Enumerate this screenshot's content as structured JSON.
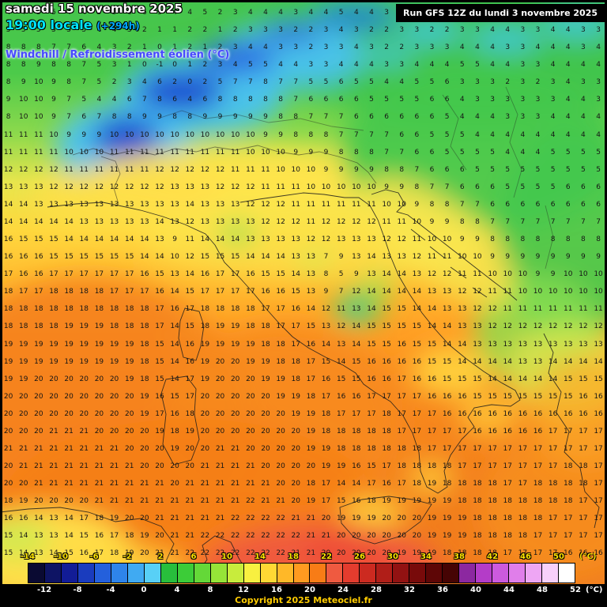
{
  "header": {
    "date": "samedi 15 novembre 2025",
    "time": "19:00 locale",
    "offset": "(+294h)",
    "variable": "Windchill / Refroidissement éolien (°C)"
  },
  "run_info": {
    "text": "Run GFS 12Z du lundi 3 novembre 2025"
  },
  "footer": {
    "copyright": "Copyright 2025 Meteociel.fr"
  },
  "scale": {
    "unit": "(°C)",
    "top_labels": [
      "-14",
      "-10",
      "-6",
      "-2",
      "2",
      "6",
      "10",
      "14",
      "18",
      "22",
      "26",
      "30",
      "34",
      "38",
      "42",
      "46",
      "50"
    ],
    "bottom_labels": [
      "-12",
      "-8",
      "-4",
      "0",
      "4",
      "8",
      "12",
      "16",
      "20",
      "24",
      "28",
      "32",
      "36",
      "40",
      "44",
      "48",
      "52"
    ],
    "colors": [
      "#0a0a32",
      "#0e1464",
      "#121c96",
      "#1a3cbe",
      "#2460dc",
      "#2e84ea",
      "#40aaf2",
      "#58d0f6",
      "#28be3c",
      "#3ccc38",
      "#64d838",
      "#96e438",
      "#c8ec3c",
      "#f8f040",
      "#ffd834",
      "#ffb828",
      "#ff9a20",
      "#f87c16",
      "#ef5a40",
      "#e43c2e",
      "#cc2a20",
      "#b01e18",
      "#921212",
      "#780a0a",
      "#5e0606",
      "#460404",
      "#8c28a0",
      "#b43cc8",
      "#cc5ade",
      "#e07eea",
      "#eea6f4",
      "#f8d0fa",
      "#ffffff"
    ]
  },
  "map": {
    "grid_rows": [
      "4 4 5 5 4 4 5 5 6 6 5 4 4 5 2 3 4 4 4 3 4 4 5 4 4 3 2 3 3 2 3 4 4 3 3 4 4 3 3 4",
      "5 5 5 5 5 5 4 4 3 2 1 1 2 2 1 2 3 3 3 2 2 3 4 3 2 2 3 3 2 2 3 3 4 4 3 3 4 4 3 3",
      "8 8 8 7 7 6 4 3 2 1 0 1 2 1 2 3 4 4 3 3 2 3 3 4 3 2 2 3 3 3 4 4 4 3 3 4 4 4 3 4",
      "8 8 9 8 8 7 5 3 1 0 -1 0 1 2 3 4 5 5 4 4 3 3 4 4 4 3 3 4 4 4 5 5 4 4 3 3 4 4 4 4",
      "8 9 10 9 8 7 5 2 3 4 6 2 0 2 5 7 7 8 7 7 5 5 6 5 5 4 4 5 5 6 3 3 3 2 3 2 3 4 3 3",
      "9 10 10 9 7 5 4 4 6 7 8 6 4 6 8 8 8 8 8 7 6 6 6 6 5 5 5 5 6 6 4 3 3 3 3 3 3 4 4 3",
      "8 10 10 9 7 6 7 8 8 9 9 8 8 9 9 9 9 9 8 8 7 7 7 6 6 6 6 6 6 5 4 4 4 3 3 3 4 4 4 4",
      "11 11 11 10 9 9 9 10 10 10 10 10 10 10 10 10 10 9 9 8 8 8 7 7 7 7 6 6 5 5 5 4 4 4 4 4 4 4 4 4",
      "11 11 11 11 10 10 10 11 11 11 11 11 11 11 11 11 10 10 10 9 9 9 8 8 8 7 7 6 6 5 5 5 5 4 4 4 5 5 5 5",
      "12 12 12 12 11 11 11 11 11 11 12 12 12 12 12 11 11 11 10 10 10 9 9 9 9 8 8 7 6 6 6 5 5 5 5 5 5 5 5 5",
      "13 13 13 12 12 12 12 12 12 12 12 13 13 13 12 12 12 11 11 11 10 10 10 10 10 9 9 8 7 7 6 6 6 5 5 5 5 6 6 6",
      "14 14 13 13 13 13 13 13 13 13 13 13 14 13 13 13 12 12 12 11 11 11 11 11 11 10 10 9 8 8 7 7 6 6 6 6 6 6 6 6",
      "14 14 14 14 14 13 13 13 13 13 14 13 12 13 13 13 13 12 12 12 11 12 12 12 12 11 11 10 9 9 8 8 7 7 7 7 7 7 7 7",
      "16 15 15 15 14 14 14 14 14 14 13 9 11 14 14 14 13 13 13 13 12 12 13 13 13 12 12 11 10 10 9 9 8 8 8 8 8 8 8 8",
      "16 16 16 15 15 15 15 15 15 14 14 10 12 15 15 15 14 14 14 13 13 7 9 13 14 13 13 12 11 11 10 10 9 9 9 9 9 9 9 9",
      "17 16 16 17 17 17 17 17 17 16 15 13 14 16 17 17 16 15 15 14 13 8 5 9 13 14 14 13 12 12 11 11 10 10 10 9 9 10 10 10",
      "18 17 17 18 18 18 18 17 17 17 16 14 15 17 17 17 17 16 16 15 13 9 7 12 14 14 14 14 13 13 12 12 11 11 10 10 10 10 10 10",
      "18 18 18 18 18 18 18 18 18 18 17 16 17 18 18 18 18 17 17 16 14 12 11 13 14 15 15 14 14 13 13 12 12 11 11 11 11 11 11 11",
      "18 18 18 18 19 19 19 18 18 18 17 14 15 18 19 19 18 18 17 17 15 13 12 14 15 15 15 15 14 14 13 13 12 12 12 12 12 12 12 12",
      "19 19 19 19 19 19 19 19 19 18 15 14 16 19 19 19 19 18 18 17 16 14 13 14 15 15 16 15 15 14 14 13 13 13 13 13 13 13 13 13",
      "19 19 19 19 19 19 19 19 19 18 15 14 16 19 20 20 19 19 18 18 17 15 14 15 16 16 16 16 15 15 14 14 14 14 13 13 14 14 14 14",
      "19 19 20 20 20 20 20 20 19 18 15 14 17 19 20 20 20 19 19 18 17 16 15 15 16 16 17 16 16 15 15 15 14 14 14 14 14 15 15 15",
      "20 20 20 20 20 20 20 20 20 19 16 15 17 20 20 20 20 20 19 19 18 17 16 16 17 17 17 17 16 16 16 15 15 15 15 15 15 15 16 16",
      "20 20 20 20 20 20 20 20 20 19 17 16 18 20 20 20 20 20 20 19 19 18 17 17 17 18 17 17 17 16 16 16 16 16 16 16 16 16 16 16",
      "20 20 20 21 21 21 20 20 20 20 19 18 19 20 20 20 20 20 20 20 19 18 18 18 18 18 17 17 17 17 17 16 16 16 16 16 17 17 17 17",
      "21 21 21 21 21 21 21 21 20 20 20 19 20 20 21 21 20 20 20 20 19 19 18 18 18 18 18 18 17 17 17 17 17 17 17 17 17 17 17 17",
      "20 21 21 21 21 21 21 21 21 20 20 20 20 21 21 21 21 20 20 20 20 19 19 16 15 17 18 18 18 18 17 17 17 17 17 17 17 18 18 17",
      "20 20 21 21 21 21 21 21 21 21 21 20 21 21 21 21 21 21 20 20 18 17 14 14 17 16 17 18 19 18 18 18 18 17 17 18 18 18 18 17",
      "18 19 20 20 20 20 21 21 21 21 21 21 21 21 21 21 22 21 21 20 19 17 15 16 18 19 19 19 19 19 18 18 18 18 18 18 18 18 17 17",
      "16 16 14 13 14 17 18 19 20 20 21 21 21 21 21 22 22 22 22 21 21 20 19 19 19 20 20 20 19 19 19 18 18 18 18 18 17 17 17 17",
      "15 14 13 13 14 15 16 17 18 19 20 21 21 22 22 22 22 22 22 22 21 21 20 20 20 20 20 20 19 19 19 18 18 18 18 17 17 17 17 17",
      "15 14 13 14 15 16 17 18 19 20 21 21 22 22 22 22 22 22 22 21 21 20 20 20 20 20 19 19 19 18 18 18 18 17 17 17 17 16 16 16"
    ]
  }
}
